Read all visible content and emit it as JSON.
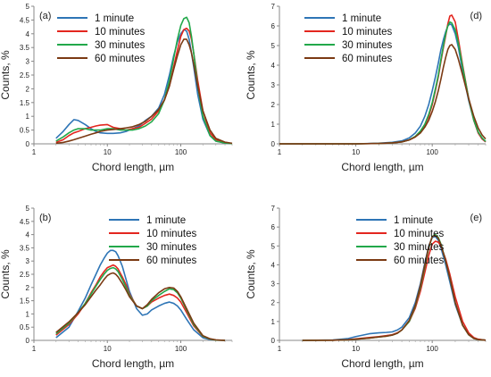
{
  "colors": {
    "1 minute": "#2e75b6",
    "10 minutes": "#e3261f",
    "30 minutes": "#22a84a",
    "60 minutes": "#7b3a13"
  },
  "chart_data": [
    {
      "panel": "(a)",
      "type": "line",
      "xscale": "log",
      "xlim": [
        1,
        500
      ],
      "ylim": [
        0,
        5
      ],
      "xticks": [
        "1",
        "10",
        "100"
      ],
      "ytick_step": 0.5,
      "xlabel": "Chord length, µm",
      "ylabel": "Counts, %",
      "legend": "top-left",
      "series": [
        {
          "name": "1 minute",
          "x": [
            2,
            2.5,
            3,
            3.5,
            4,
            5,
            6,
            7,
            8,
            10,
            12,
            15,
            18,
            22,
            27,
            33,
            40,
            50,
            60,
            70,
            80,
            90,
            100,
            110,
            120,
            130,
            140,
            150,
            170,
            200,
            250,
            300,
            400,
            500
          ],
          "y": [
            0.2,
            0.45,
            0.7,
            0.88,
            0.85,
            0.7,
            0.55,
            0.45,
            0.4,
            0.38,
            0.38,
            0.4,
            0.45,
            0.55,
            0.65,
            0.85,
            1.0,
            1.3,
            1.8,
            2.5,
            3.2,
            3.7,
            4.0,
            4.15,
            4.1,
            3.8,
            3.3,
            2.8,
            1.8,
            0.9,
            0.3,
            0.1,
            0.03,
            0.01
          ]
        },
        {
          "name": "10 minutes",
          "x": [
            2,
            2.5,
            3,
            3.5,
            4,
            5,
            6,
            7,
            8,
            10,
            12,
            15,
            18,
            22,
            27,
            33,
            40,
            50,
            60,
            70,
            80,
            90,
            100,
            110,
            120,
            130,
            140,
            150,
            170,
            200,
            250,
            300,
            400,
            500
          ],
          "y": [
            0.05,
            0.15,
            0.3,
            0.4,
            0.45,
            0.55,
            0.6,
            0.65,
            0.68,
            0.7,
            0.6,
            0.55,
            0.5,
            0.55,
            0.6,
            0.75,
            0.9,
            1.2,
            1.6,
            2.1,
            2.8,
            3.4,
            3.9,
            4.15,
            4.2,
            4.1,
            3.8,
            3.3,
            2.3,
            1.2,
            0.4,
            0.15,
            0.05,
            0.01
          ]
        },
        {
          "name": "30 minutes",
          "x": [
            2,
            2.5,
            3,
            3.5,
            4,
            5,
            6,
            7,
            8,
            10,
            12,
            15,
            18,
            22,
            27,
            33,
            40,
            50,
            60,
            70,
            80,
            90,
            100,
            110,
            120,
            130,
            140,
            150,
            170,
            200,
            250,
            300,
            400,
            500
          ],
          "y": [
            0.1,
            0.25,
            0.4,
            0.5,
            0.55,
            0.55,
            0.5,
            0.5,
            0.5,
            0.55,
            0.55,
            0.5,
            0.5,
            0.5,
            0.55,
            0.65,
            0.8,
            1.1,
            1.6,
            2.3,
            3.1,
            3.8,
            4.3,
            4.55,
            4.6,
            4.4,
            3.9,
            3.3,
            2.1,
            1.0,
            0.3,
            0.1,
            0.03,
            0.01
          ]
        },
        {
          "name": "60 minutes",
          "x": [
            2,
            2.5,
            3,
            3.5,
            4,
            5,
            6,
            7,
            8,
            10,
            12,
            15,
            18,
            22,
            27,
            33,
            40,
            50,
            60,
            70,
            80,
            90,
            100,
            110,
            120,
            130,
            140,
            150,
            170,
            200,
            250,
            300,
            400,
            500
          ],
          "y": [
            0.02,
            0.05,
            0.1,
            0.15,
            0.2,
            0.28,
            0.35,
            0.4,
            0.45,
            0.5,
            0.52,
            0.55,
            0.58,
            0.62,
            0.7,
            0.82,
            1.0,
            1.25,
            1.6,
            2.1,
            2.7,
            3.2,
            3.6,
            3.8,
            3.8,
            3.6,
            3.3,
            2.9,
            2.1,
            1.2,
            0.5,
            0.2,
            0.06,
            0.02
          ]
        }
      ]
    },
    {
      "panel": "(d)",
      "type": "line",
      "xscale": "log",
      "xlim": [
        1,
        500
      ],
      "ylim": [
        0,
        7
      ],
      "xticks": [
        "1",
        "10",
        "100"
      ],
      "ytick_step": 1,
      "xlabel": "Chord length, µm",
      "ylabel": "Counts, %",
      "legend": "top-left",
      "series": [
        {
          "name": "1 minute",
          "x": [
            1,
            10,
            20,
            30,
            40,
            50,
            60,
            70,
            80,
            90,
            100,
            110,
            120,
            130,
            140,
            150,
            160,
            170,
            180,
            200,
            220,
            250,
            300,
            350,
            400,
            450,
            500
          ],
          "y": [
            0,
            0,
            0.03,
            0.08,
            0.15,
            0.3,
            0.55,
            0.9,
            1.4,
            2.0,
            2.7,
            3.4,
            4.1,
            4.8,
            5.3,
            5.7,
            6.0,
            6.1,
            6.05,
            5.6,
            4.9,
            3.7,
            2.2,
            1.2,
            0.55,
            0.25,
            0.1
          ]
        },
        {
          "name": "10 minutes",
          "x": [
            1,
            10,
            20,
            30,
            40,
            50,
            60,
            70,
            80,
            90,
            100,
            110,
            120,
            130,
            140,
            150,
            160,
            170,
            180,
            200,
            220,
            250,
            300,
            350,
            400,
            450,
            500
          ],
          "y": [
            0,
            0,
            0.02,
            0.05,
            0.1,
            0.2,
            0.35,
            0.6,
            0.95,
            1.4,
            2.0,
            2.7,
            3.4,
            4.2,
            4.9,
            5.5,
            6.1,
            6.5,
            6.55,
            6.2,
            5.3,
            4.0,
            2.3,
            1.2,
            0.55,
            0.25,
            0.1
          ]
        },
        {
          "name": "30 minutes",
          "x": [
            1,
            10,
            20,
            30,
            40,
            50,
            60,
            70,
            80,
            90,
            100,
            110,
            120,
            130,
            140,
            150,
            160,
            170,
            180,
            200,
            220,
            250,
            300,
            350,
            400,
            450,
            500
          ],
          "y": [
            0,
            0,
            0.02,
            0.05,
            0.1,
            0.2,
            0.38,
            0.65,
            1.0,
            1.5,
            2.1,
            2.8,
            3.5,
            4.3,
            5.0,
            5.6,
            6.0,
            6.2,
            6.15,
            5.8,
            5.1,
            3.9,
            2.3,
            1.2,
            0.6,
            0.3,
            0.12
          ]
        },
        {
          "name": "60 minutes",
          "x": [
            1,
            10,
            20,
            30,
            40,
            50,
            60,
            70,
            80,
            90,
            100,
            110,
            120,
            130,
            140,
            150,
            160,
            170,
            180,
            200,
            220,
            250,
            300,
            350,
            400,
            450,
            500
          ],
          "y": [
            0,
            0,
            0.02,
            0.05,
            0.1,
            0.2,
            0.35,
            0.55,
            0.85,
            1.2,
            1.65,
            2.15,
            2.7,
            3.3,
            3.9,
            4.4,
            4.8,
            5.0,
            5.05,
            4.8,
            4.3,
            3.5,
            2.3,
            1.4,
            0.8,
            0.45,
            0.25
          ]
        }
      ]
    },
    {
      "panel": "(b)",
      "type": "line",
      "xscale": "log",
      "xlim": [
        1,
        500
      ],
      "ylim": [
        0,
        5
      ],
      "xticks": [
        "1",
        "10",
        "100"
      ],
      "ytick_step": 0.5,
      "xlabel": "Chord length, µm",
      "ylabel": "Counts, %",
      "legend": "top-right",
      "series": [
        {
          "name": "1 minute",
          "x": [
            2,
            3,
            4,
            5,
            6,
            7,
            8,
            9,
            10,
            11,
            12,
            13,
            14,
            16,
            18,
            20,
            25,
            30,
            35,
            40,
            50,
            60,
            70,
            80,
            90,
            100,
            120,
            150,
            200,
            250,
            300,
            400
          ],
          "y": [
            0.1,
            0.5,
            1.1,
            1.6,
            2.1,
            2.5,
            2.85,
            3.1,
            3.3,
            3.4,
            3.4,
            3.35,
            3.2,
            2.8,
            2.3,
            1.85,
            1.2,
            0.95,
            1.0,
            1.15,
            1.3,
            1.4,
            1.45,
            1.4,
            1.3,
            1.15,
            0.8,
            0.4,
            0.1,
            0.03,
            0.01,
            0
          ]
        },
        {
          "name": "10 minutes",
          "x": [
            2,
            3,
            4,
            5,
            6,
            7,
            8,
            9,
            10,
            11,
            12,
            13,
            14,
            16,
            18,
            20,
            25,
            30,
            35,
            40,
            50,
            60,
            70,
            80,
            90,
            100,
            120,
            150,
            200,
            250,
            300,
            400
          ],
          "y": [
            0.2,
            0.6,
            1.0,
            1.4,
            1.8,
            2.1,
            2.4,
            2.6,
            2.75,
            2.8,
            2.85,
            2.8,
            2.7,
            2.4,
            2.1,
            1.75,
            1.3,
            1.2,
            1.3,
            1.45,
            1.6,
            1.7,
            1.75,
            1.7,
            1.6,
            1.45,
            1.05,
            0.55,
            0.15,
            0.05,
            0.01,
            0
          ]
        },
        {
          "name": "30 minutes",
          "x": [
            2,
            3,
            4,
            5,
            6,
            7,
            8,
            9,
            10,
            11,
            12,
            13,
            14,
            16,
            18,
            20,
            25,
            30,
            35,
            40,
            50,
            60,
            70,
            80,
            90,
            100,
            120,
            150,
            200,
            250,
            300,
            400
          ],
          "y": [
            0.25,
            0.65,
            1.05,
            1.4,
            1.75,
            2.05,
            2.3,
            2.5,
            2.65,
            2.72,
            2.75,
            2.7,
            2.6,
            2.3,
            2.0,
            1.7,
            1.3,
            1.2,
            1.3,
            1.5,
            1.7,
            1.85,
            1.95,
            1.92,
            1.8,
            1.6,
            1.15,
            0.6,
            0.16,
            0.05,
            0.01,
            0
          ]
        },
        {
          "name": "60 minutes",
          "x": [
            2,
            3,
            4,
            5,
            6,
            7,
            8,
            9,
            10,
            11,
            12,
            13,
            14,
            16,
            18,
            20,
            25,
            30,
            35,
            40,
            50,
            60,
            70,
            80,
            90,
            100,
            120,
            150,
            200,
            250,
            300,
            400
          ],
          "y": [
            0.3,
            0.7,
            1.05,
            1.35,
            1.65,
            1.9,
            2.1,
            2.3,
            2.45,
            2.52,
            2.55,
            2.5,
            2.4,
            2.15,
            1.9,
            1.65,
            1.3,
            1.2,
            1.35,
            1.55,
            1.8,
            1.95,
            2.0,
            1.98,
            1.85,
            1.65,
            1.2,
            0.65,
            0.18,
            0.06,
            0.02,
            0
          ]
        }
      ]
    },
    {
      "panel": "(e)",
      "type": "line",
      "xscale": "log",
      "xlim": [
        1,
        500
      ],
      "ylim": [
        0,
        7
      ],
      "xticks": [
        "1",
        "10",
        "100"
      ],
      "ytick_step": 1,
      "xlabel": "Chord length, µm",
      "ylabel": "Counts, %",
      "legend": "top-right",
      "series": [
        {
          "name": "1 minute",
          "x": [
            2,
            5,
            8,
            10,
            15,
            20,
            25,
            30,
            35,
            40,
            50,
            60,
            70,
            80,
            90,
            100,
            110,
            120,
            130,
            150,
            170,
            200,
            250,
            300,
            350,
            400,
            500
          ],
          "y": [
            0,
            0.02,
            0.1,
            0.2,
            0.35,
            0.4,
            0.42,
            0.45,
            0.55,
            0.7,
            1.2,
            2.0,
            3.0,
            4.1,
            5.0,
            5.45,
            5.5,
            5.3,
            4.9,
            4.0,
            3.1,
            1.9,
            0.8,
            0.3,
            0.12,
            0.05,
            0.01
          ]
        },
        {
          "name": "10 minutes",
          "x": [
            2,
            5,
            8,
            10,
            15,
            20,
            25,
            30,
            35,
            40,
            50,
            60,
            70,
            80,
            90,
            100,
            110,
            120,
            130,
            150,
            170,
            200,
            250,
            300,
            350,
            400,
            500
          ],
          "y": [
            0,
            0.01,
            0.04,
            0.08,
            0.15,
            0.2,
            0.25,
            0.3,
            0.4,
            0.55,
            1.0,
            1.7,
            2.6,
            3.6,
            4.5,
            5.1,
            5.25,
            5.2,
            5.0,
            4.3,
            3.5,
            2.3,
            1.0,
            0.4,
            0.15,
            0.06,
            0.01
          ]
        },
        {
          "name": "30 minutes",
          "x": [
            2,
            5,
            8,
            10,
            15,
            20,
            25,
            30,
            35,
            40,
            50,
            60,
            70,
            80,
            90,
            100,
            110,
            120,
            130,
            150,
            170,
            200,
            250,
            300,
            350,
            400,
            500
          ],
          "y": [
            0,
            0.01,
            0.03,
            0.06,
            0.12,
            0.18,
            0.22,
            0.28,
            0.38,
            0.55,
            1.0,
            1.8,
            2.8,
            3.9,
            4.9,
            5.5,
            5.6,
            5.45,
            5.1,
            4.2,
            3.3,
            2.0,
            0.8,
            0.3,
            0.1,
            0.04,
            0.01
          ]
        },
        {
          "name": "60 minutes",
          "x": [
            2,
            5,
            8,
            10,
            15,
            20,
            25,
            30,
            35,
            40,
            50,
            60,
            70,
            80,
            90,
            100,
            110,
            120,
            130,
            150,
            170,
            200,
            250,
            300,
            350,
            400,
            500
          ],
          "y": [
            0,
            0.01,
            0.03,
            0.06,
            0.12,
            0.18,
            0.22,
            0.28,
            0.38,
            0.55,
            1.05,
            1.85,
            2.9,
            4.0,
            4.95,
            5.5,
            5.55,
            5.4,
            5.05,
            4.2,
            3.3,
            2.0,
            0.8,
            0.3,
            0.1,
            0.04,
            0.01
          ]
        }
      ]
    }
  ]
}
